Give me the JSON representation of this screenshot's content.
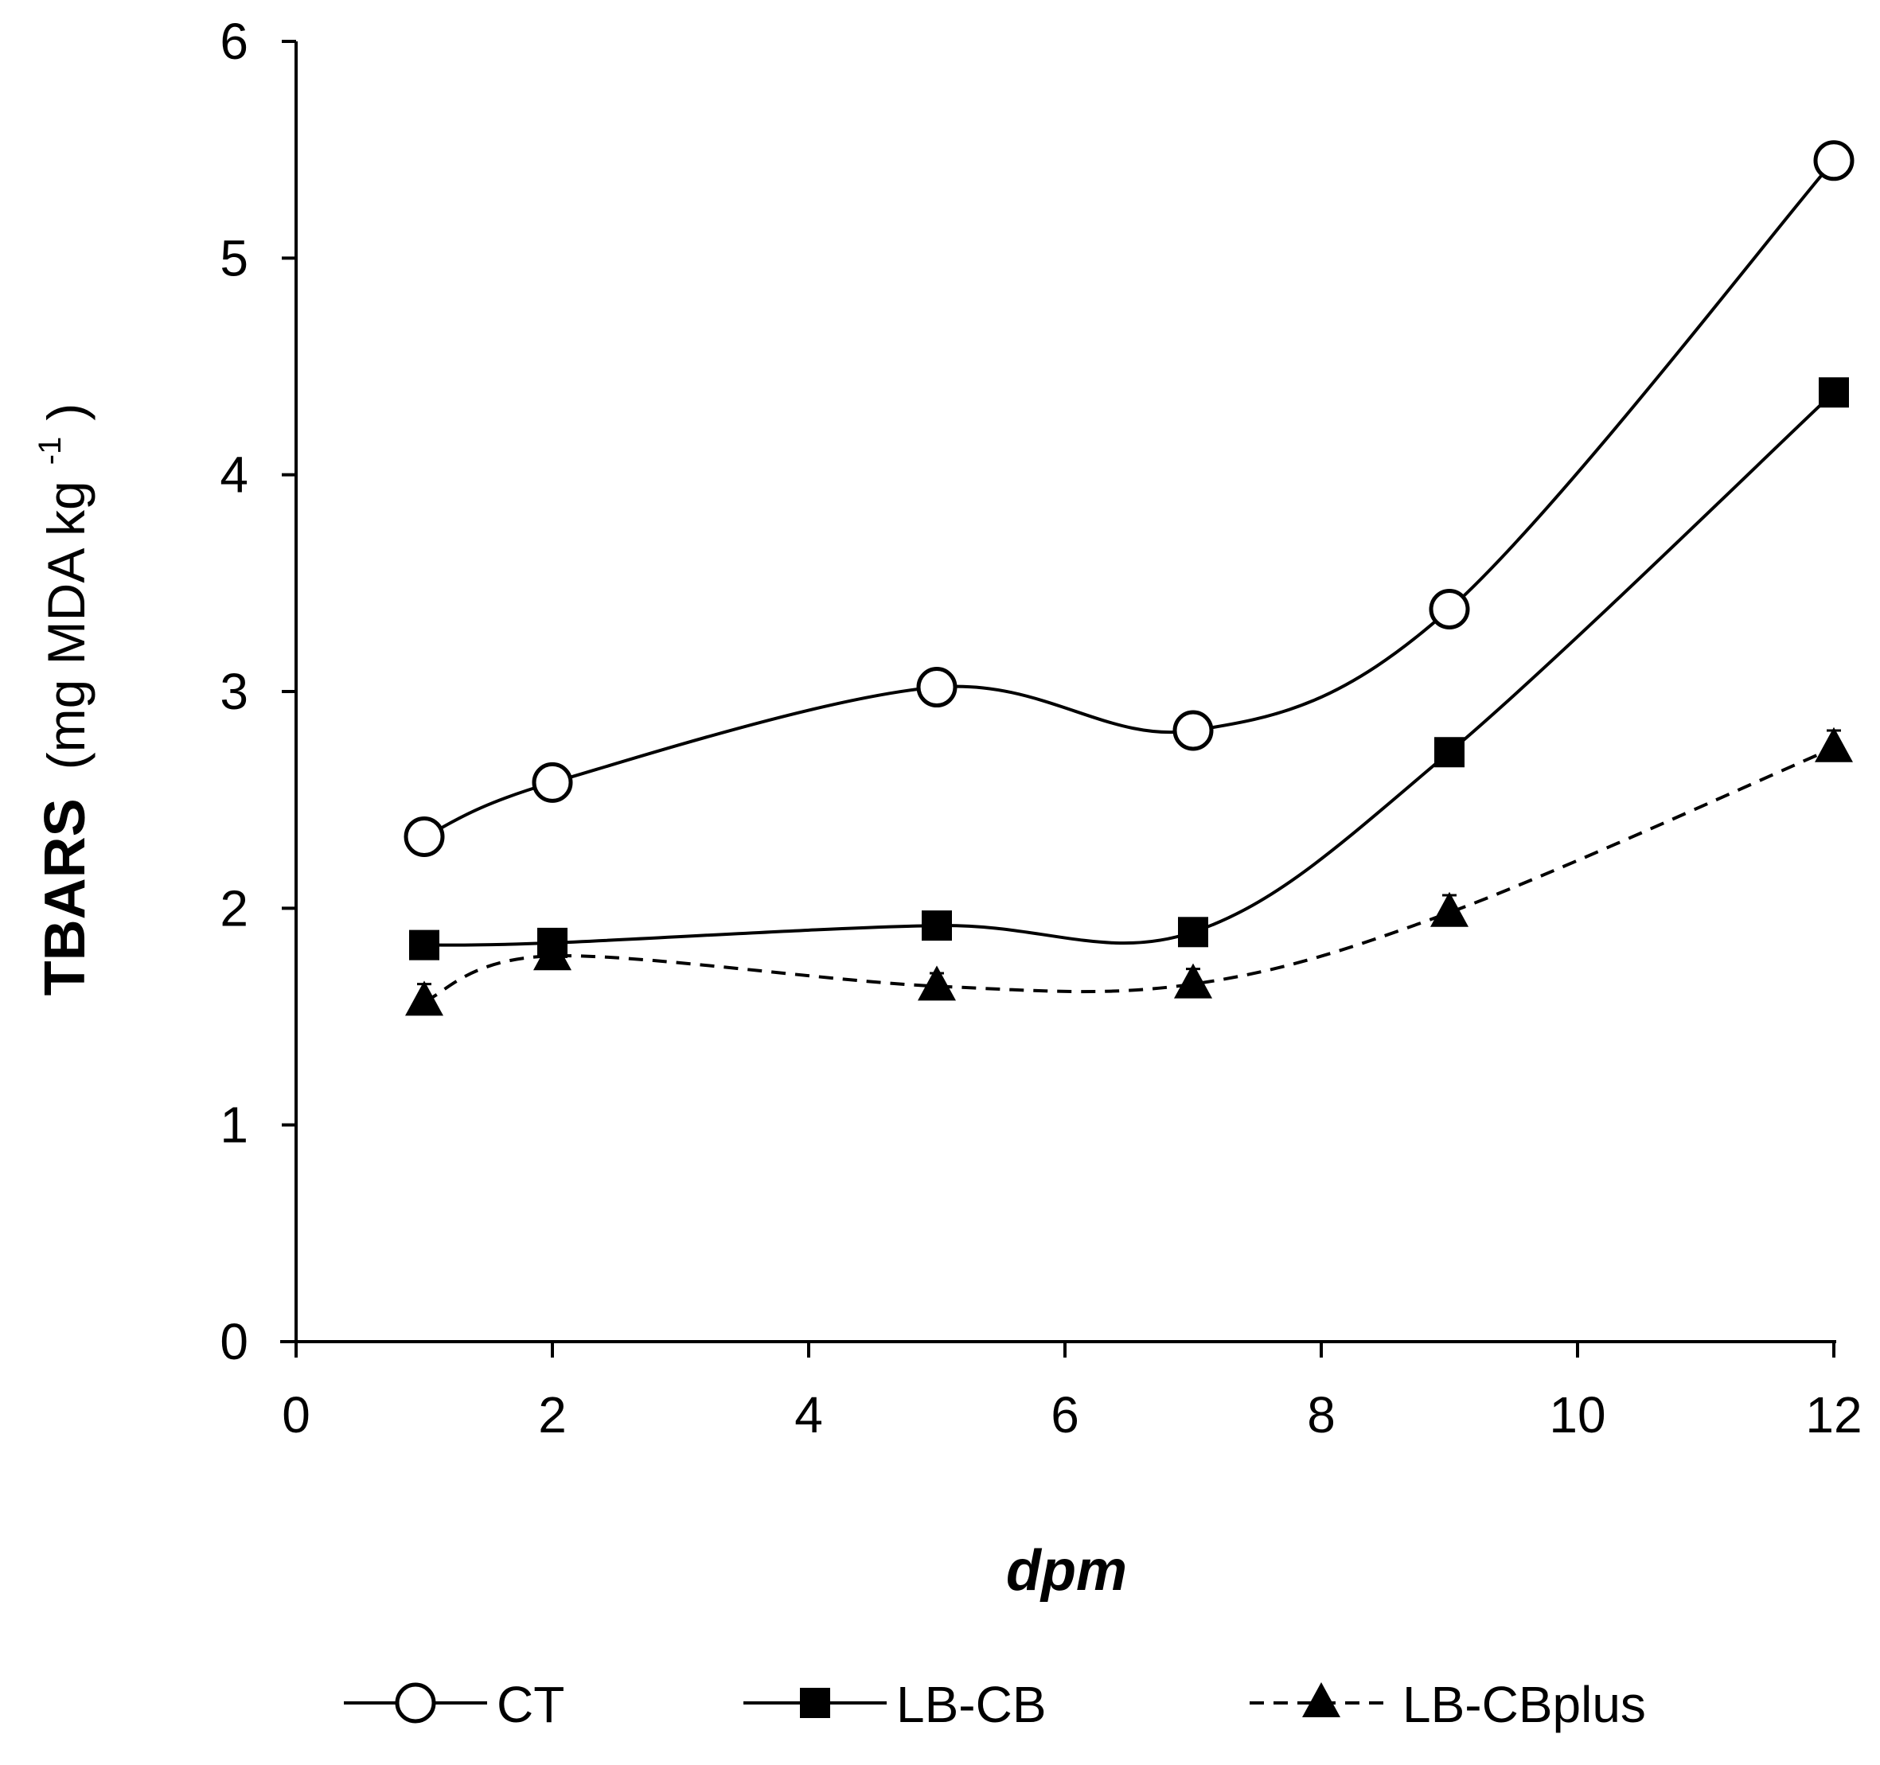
{
  "chart_data": {
    "type": "line",
    "title": "",
    "xlabel": "dpm",
    "ylabel_main": "TBARS",
    "ylabel_unit": "(mg MDA kg",
    "ylabel_sup": "-1",
    "ylabel_close": ")",
    "xlim": [
      0,
      12
    ],
    "ylim": [
      0,
      6
    ],
    "xticks": [
      "0",
      "2",
      "4",
      "6",
      "8",
      "10",
      "12"
    ],
    "yticks": [
      "0",
      "1",
      "2",
      "3",
      "4",
      "5",
      "6"
    ],
    "x": [
      1,
      2,
      5,
      7,
      9,
      12
    ],
    "series": [
      {
        "name": "CT",
        "marker": "circle-open",
        "line": "solid",
        "values": [
          2.33,
          2.58,
          3.02,
          2.82,
          3.38,
          5.45
        ],
        "errors": [
          0.05,
          0.04,
          0.04,
          0.04,
          0.05,
          0.08
        ]
      },
      {
        "name": "LB-CB",
        "marker": "square-filled",
        "line": "solid",
        "values": [
          1.83,
          1.84,
          1.92,
          1.89,
          2.72,
          4.38
        ],
        "errors": [
          0.04,
          0.04,
          0.04,
          0.04,
          0.05,
          0.06
        ]
      },
      {
        "name": "LB-CBplus",
        "marker": "triangle-filled",
        "line": "dashed",
        "values": [
          1.57,
          1.78,
          1.64,
          1.65,
          1.98,
          2.74
        ],
        "errors": [
          0.08,
          0.05,
          0.06,
          0.07,
          0.08,
          0.08
        ]
      }
    ],
    "grid": false,
    "legend_position": "bottom"
  }
}
